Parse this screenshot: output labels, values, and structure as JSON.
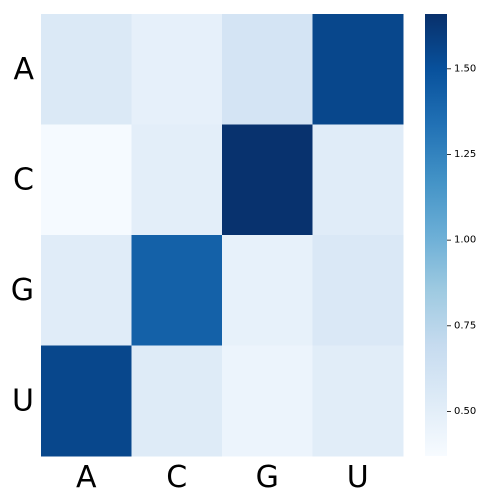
{
  "chart_data": {
    "type": "heatmap",
    "title": "",
    "xlabel": "",
    "ylabel": "",
    "x_categories": [
      "A",
      "C",
      "G",
      "U"
    ],
    "y_categories": [
      "A",
      "C",
      "G",
      "U"
    ],
    "values": [
      [
        0.55,
        0.48,
        0.6,
        1.55
      ],
      [
        0.38,
        0.5,
        1.65,
        0.52
      ],
      [
        0.52,
        1.42,
        0.47,
        0.56
      ],
      [
        1.55,
        0.53,
        0.44,
        0.51
      ]
    ],
    "colormap": "Blues",
    "vmin": 0.37,
    "vmax": 1.66,
    "colorbar": {
      "ticks": [
        0.5,
        0.75,
        1.0,
        1.25,
        1.5
      ],
      "tick_labels": [
        "0.50",
        "0.75",
        "1.00",
        "1.25",
        "1.50"
      ]
    },
    "grid": false
  }
}
